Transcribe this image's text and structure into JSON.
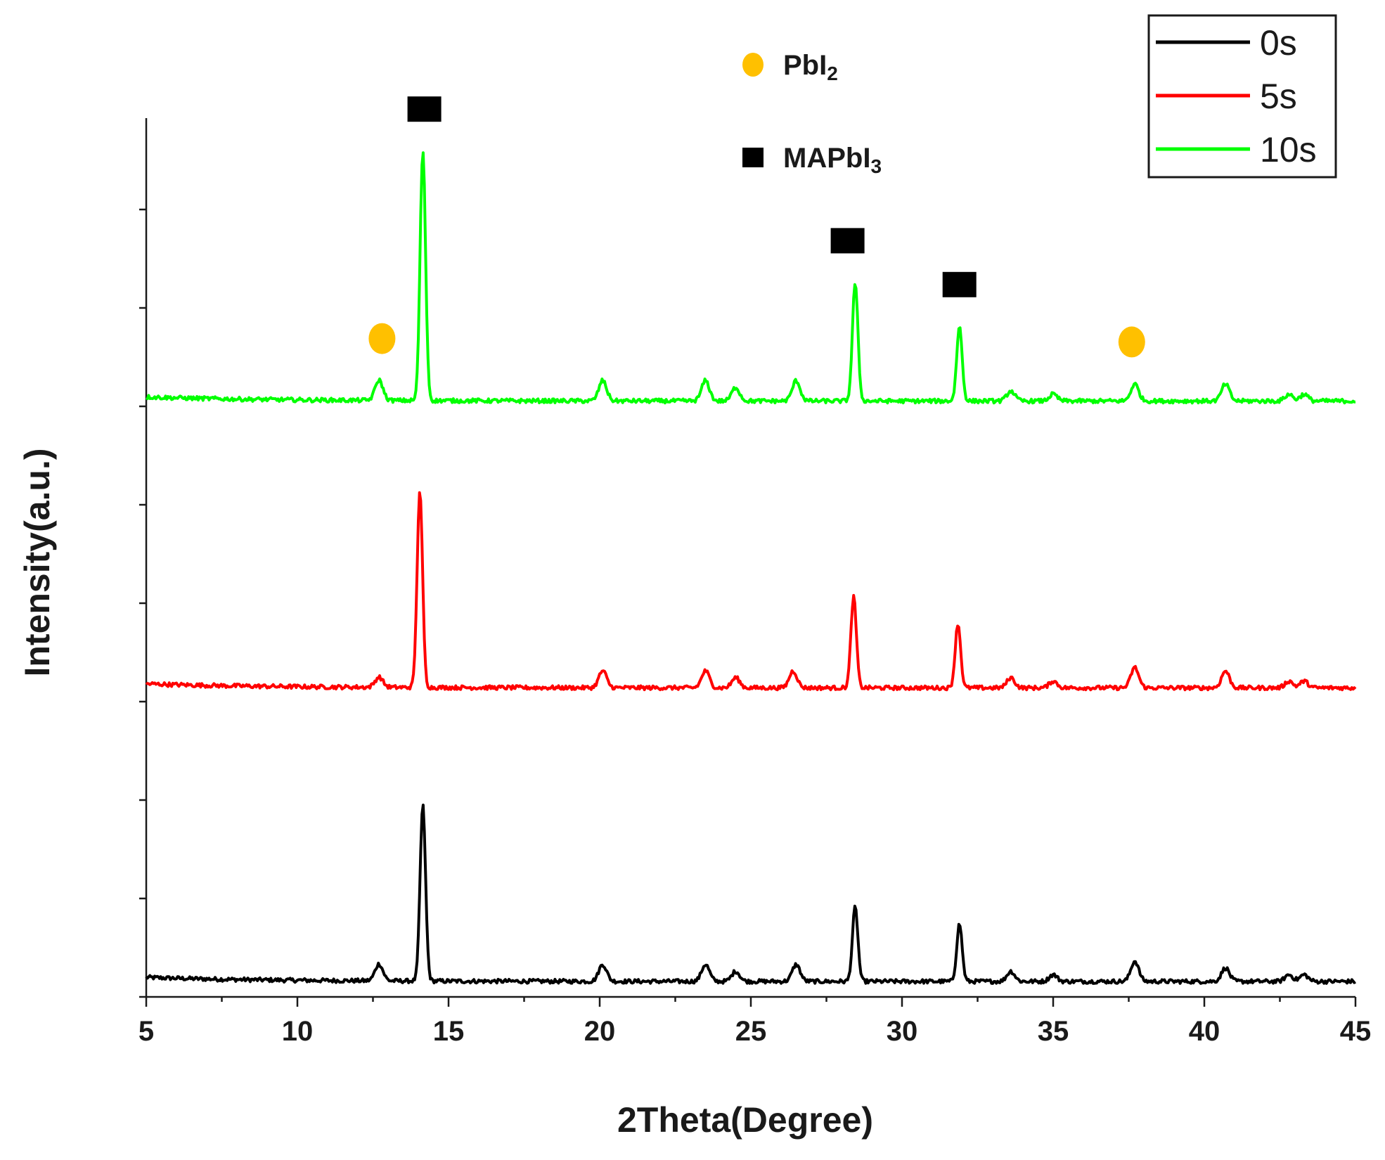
{
  "chart_data": {
    "type": "line",
    "title": "",
    "xlabel": "2Theta(Degree)",
    "ylabel": "Intensity(a.u.)",
    "xlim": [
      5,
      45
    ],
    "xticks": [
      5,
      10,
      15,
      20,
      25,
      30,
      35,
      40,
      45
    ],
    "grid": false,
    "legend_position": "top-right",
    "y_ticks_unlabeled": true,
    "series": [
      {
        "name": "0s",
        "color": "#000000",
        "baseline": 0.0,
        "peaks": [
          {
            "x": 12.7,
            "y": 0.05
          },
          {
            "x": 14.15,
            "y": 0.52
          },
          {
            "x": 20.1,
            "y": 0.05
          },
          {
            "x": 23.5,
            "y": 0.05
          },
          {
            "x": 24.5,
            "y": 0.03
          },
          {
            "x": 26.5,
            "y": 0.05
          },
          {
            "x": 28.45,
            "y": 0.22
          },
          {
            "x": 31.9,
            "y": 0.17
          },
          {
            "x": 33.6,
            "y": 0.03
          },
          {
            "x": 35.0,
            "y": 0.02
          },
          {
            "x": 37.7,
            "y": 0.06
          },
          {
            "x": 40.7,
            "y": 0.04
          },
          {
            "x": 42.8,
            "y": 0.02
          },
          {
            "x": 43.3,
            "y": 0.02
          }
        ]
      },
      {
        "name": "5s",
        "color": "#ff0000",
        "baseline": 0.87,
        "peaks": [
          {
            "x": 12.7,
            "y": 0.03
          },
          {
            "x": 14.05,
            "y": 0.58
          },
          {
            "x": 20.1,
            "y": 0.05
          },
          {
            "x": 23.5,
            "y": 0.05
          },
          {
            "x": 24.5,
            "y": 0.03
          },
          {
            "x": 26.4,
            "y": 0.05
          },
          {
            "x": 28.4,
            "y": 0.27
          },
          {
            "x": 31.85,
            "y": 0.19
          },
          {
            "x": 33.6,
            "y": 0.03
          },
          {
            "x": 35.0,
            "y": 0.02
          },
          {
            "x": 37.7,
            "y": 0.06
          },
          {
            "x": 40.7,
            "y": 0.05
          },
          {
            "x": 42.8,
            "y": 0.02
          },
          {
            "x": 43.3,
            "y": 0.02
          }
        ]
      },
      {
        "name": "10s",
        "color": "#00ff00",
        "baseline": 1.72,
        "peaks": [
          {
            "x": 12.7,
            "y": 0.06
          },
          {
            "x": 14.15,
            "y": 0.74
          },
          {
            "x": 20.1,
            "y": 0.06
          },
          {
            "x": 23.5,
            "y": 0.06
          },
          {
            "x": 24.5,
            "y": 0.04
          },
          {
            "x": 26.5,
            "y": 0.06
          },
          {
            "x": 28.45,
            "y": 0.35
          },
          {
            "x": 31.9,
            "y": 0.22
          },
          {
            "x": 33.6,
            "y": 0.03
          },
          {
            "x": 35.0,
            "y": 0.02
          },
          {
            "x": 37.7,
            "y": 0.05
          },
          {
            "x": 40.7,
            "y": 0.05
          },
          {
            "x": 42.8,
            "y": 0.02
          },
          {
            "x": 43.3,
            "y": 0.02
          }
        ]
      }
    ],
    "phase_legend": [
      {
        "symbol": "circle",
        "color": "#ffc000",
        "label": "PbI",
        "subscript": "2"
      },
      {
        "symbol": "square",
        "color": "#000000",
        "label": "MAPbI",
        "subscript": "3"
      }
    ],
    "peak_markers": [
      {
        "symbol": "square",
        "x": 14.2
      },
      {
        "symbol": "square",
        "x": 28.2
      },
      {
        "symbol": "square",
        "x": 31.9
      },
      {
        "symbol": "circle",
        "x": 12.8
      },
      {
        "symbol": "circle",
        "x": 37.6
      }
    ]
  }
}
